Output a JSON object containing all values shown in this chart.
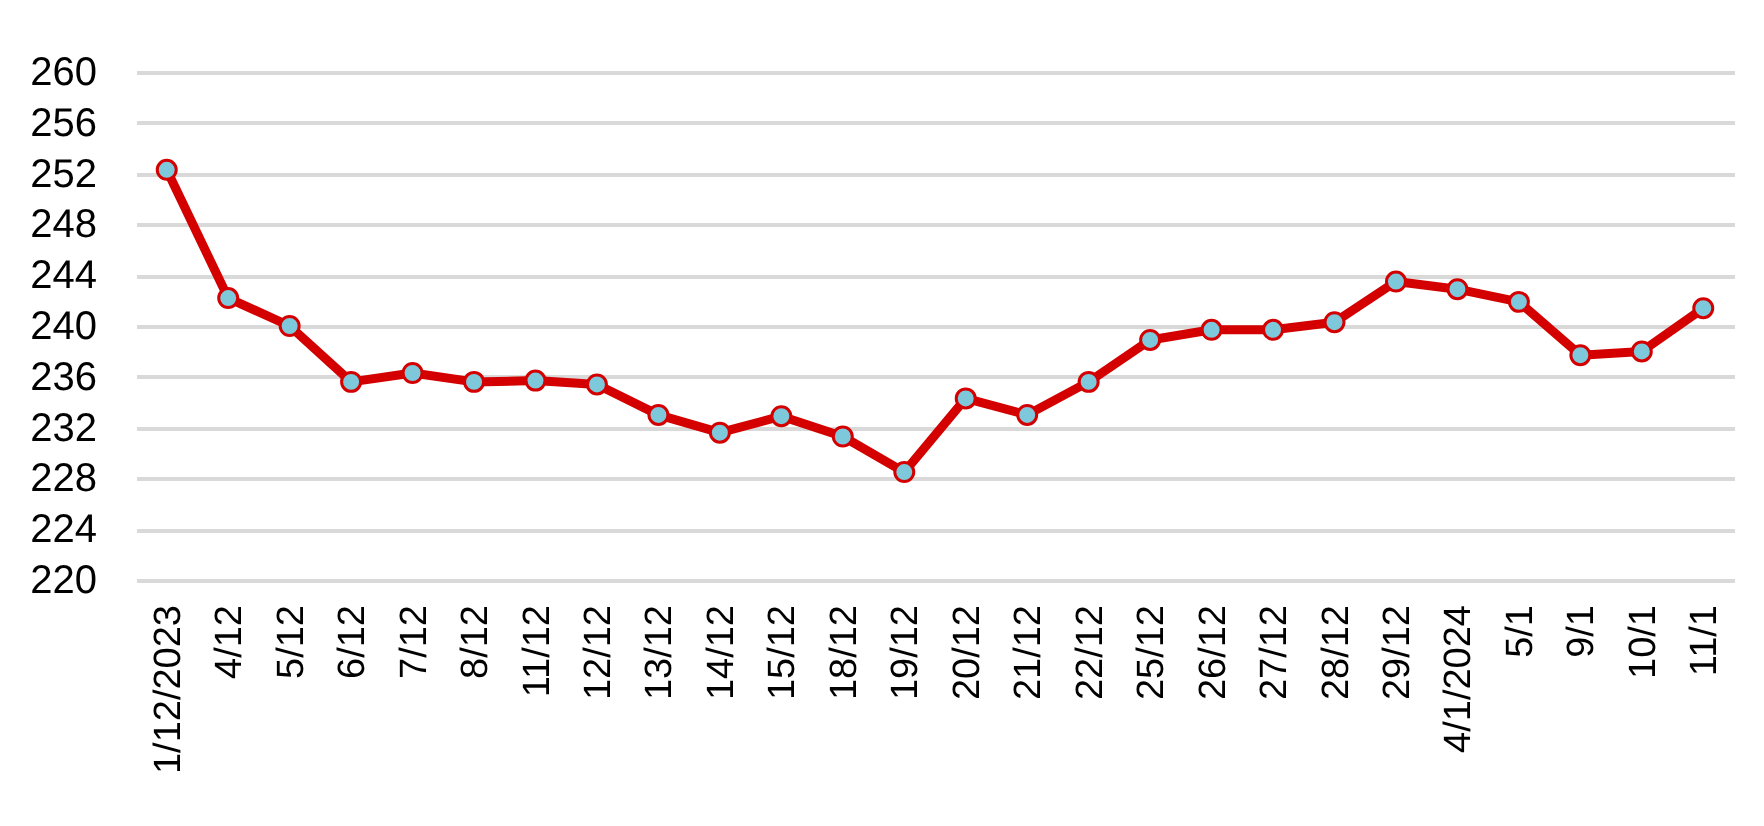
{
  "chart_data": {
    "type": "line",
    "categories": [
      "1/12/2023",
      "4/12",
      "5/12",
      "6/12",
      "7/12",
      "8/12",
      "11/12",
      "12/12",
      "13/12",
      "14/12",
      "15/12",
      "18/12",
      "19/12",
      "20/12",
      "21/12",
      "22/12",
      "25/12",
      "26/12",
      "27/12",
      "28/12",
      "29/12",
      "4/1/2024",
      "5/1",
      "9/1",
      "10/1",
      "11/1"
    ],
    "series": [
      {
        "color": "#d40000",
        "values": [
          252.3,
          242.2,
          240.0,
          235.6,
          236.3,
          235.6,
          235.7,
          235.4,
          233.0,
          231.6,
          232.9,
          231.3,
          228.5,
          234.3,
          233.0,
          235.6,
          238.9,
          239.7,
          239.7,
          240.3,
          243.5,
          242.9,
          241.9,
          237.7,
          238.0,
          241.4
        ]
      }
    ],
    "ylim": [
      220,
      260
    ],
    "yticks": [
      220,
      224,
      228,
      232,
      236,
      240,
      244,
      248,
      252,
      256,
      260
    ],
    "grid": "y",
    "marker": "circle",
    "line_style": "solid"
  }
}
